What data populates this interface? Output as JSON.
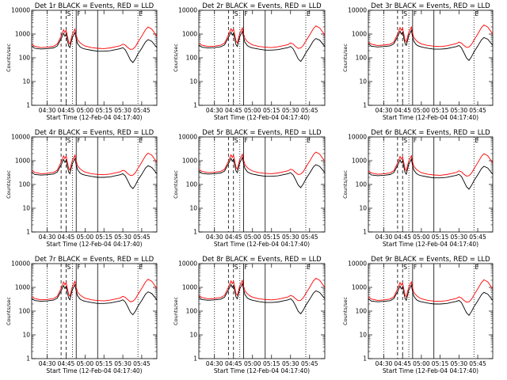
{
  "figure": {
    "panels": [
      {
        "title": "Det 1r BLACK = Events, RED = LLD"
      },
      {
        "title": "Det 2r BLACK = Events, RED = LLD"
      },
      {
        "title": "Det 3r BLACK = Events, RED = LLD"
      },
      {
        "title": "Det 4r BLACK = Events, RED = LLD"
      },
      {
        "title": "Det 5r BLACK = Events, RED = LLD"
      },
      {
        "title": "Det 6r BLACK = Events, RED = LLD"
      },
      {
        "title": "Det 7r BLACK = Events, RED = LLD"
      },
      {
        "title": "Det 8r BLACK = Events, RED = LLD"
      },
      {
        "title": "Det 9r BLACK = Events, RED = LLD"
      }
    ]
  },
  "chart_data": {
    "type": "line",
    "panel_count": 9,
    "title_template": "Det {n}r BLACK = Events, RED = LLD",
    "xlabel": "Start Time (12-Feb-04 04:17:40)",
    "ylabel": "Counts/sec",
    "yscale": "log",
    "ylim": [
      1,
      10000
    ],
    "yticks": [
      {
        "value": 1,
        "label": "1"
      },
      {
        "value": 10,
        "label": "10"
      },
      {
        "value": 100,
        "label": "100"
      },
      {
        "value": 1000,
        "label": "1000"
      },
      {
        "value": 10000,
        "label": "10000"
      }
    ],
    "xlim": [
      "04:17:40",
      "05:57:00"
    ],
    "xticks": [
      "04:30",
      "04:45",
      "05:00",
      "05:15",
      "05:30",
      "05:45"
    ],
    "grid": false,
    "markers": [
      {
        "time": "04:30",
        "style": "dotted"
      },
      {
        "time": "04:41",
        "style": "dashed"
      },
      {
        "time": "04:45",
        "style": "dashed",
        "label": "S"
      },
      {
        "time": "04:50",
        "style": "dotted"
      },
      {
        "time": "04:53",
        "style": "solid",
        "label": "F"
      },
      {
        "time": "05:10",
        "style": "solid"
      },
      {
        "time": "05:42",
        "style": "dotted",
        "label": "E"
      }
    ],
    "series": [
      {
        "name": "Events",
        "color": "#000000",
        "x": [
          "04:17:40",
          "04:20",
          "04:25",
          "04:30",
          "04:35",
          "04:38",
          "04:41",
          "04:43",
          "04:44",
          "04:45",
          "04:46",
          "04:47",
          "04:48",
          "04:49",
          "04:50",
          "04:52",
          "04:53",
          "04:54",
          "04:56",
          "04:58",
          "05:00",
          "05:05",
          "05:10",
          "05:15",
          "05:20",
          "05:25",
          "05:28",
          "05:30",
          "05:32",
          "05:34",
          "05:36",
          "05:38",
          "05:40",
          "05:42",
          "05:45",
          "05:48",
          "05:50",
          "05:53",
          "05:57"
        ],
        "values": [
          350,
          280,
          260,
          270,
          290,
          350,
          700,
          1200,
          900,
          1100,
          600,
          350,
          300,
          500,
          800,
          1300,
          700,
          450,
          320,
          280,
          260,
          230,
          210,
          210,
          220,
          250,
          270,
          300,
          240,
          150,
          90,
          70,
          100,
          160,
          280,
          520,
          650,
          550,
          300
        ]
      },
      {
        "name": "LLD",
        "color": "#ff0000",
        "x": [
          "04:17:40",
          "04:20",
          "04:25",
          "04:30",
          "04:35",
          "04:38",
          "04:41",
          "04:43",
          "04:44",
          "04:45",
          "04:46",
          "04:47",
          "04:48",
          "04:49",
          "04:50",
          "04:52",
          "04:53",
          "04:54",
          "04:56",
          "04:58",
          "05:00",
          "05:05",
          "05:10",
          "05:15",
          "05:20",
          "05:25",
          "05:28",
          "05:30",
          "05:32",
          "05:34",
          "05:36",
          "05:38",
          "05:40",
          "05:42",
          "05:45",
          "05:48",
          "05:50",
          "05:53",
          "05:57"
        ],
        "values": [
          420,
          340,
          300,
          310,
          340,
          420,
          900,
          1700,
          1300,
          1600,
          900,
          500,
          420,
          700,
          1100,
          1800,
          1000,
          650,
          480,
          400,
          350,
          300,
          280,
          270,
          290,
          330,
          360,
          420,
          380,
          300,
          250,
          260,
          330,
          500,
          900,
          1700,
          2200,
          1800,
          900
        ]
      }
    ]
  }
}
